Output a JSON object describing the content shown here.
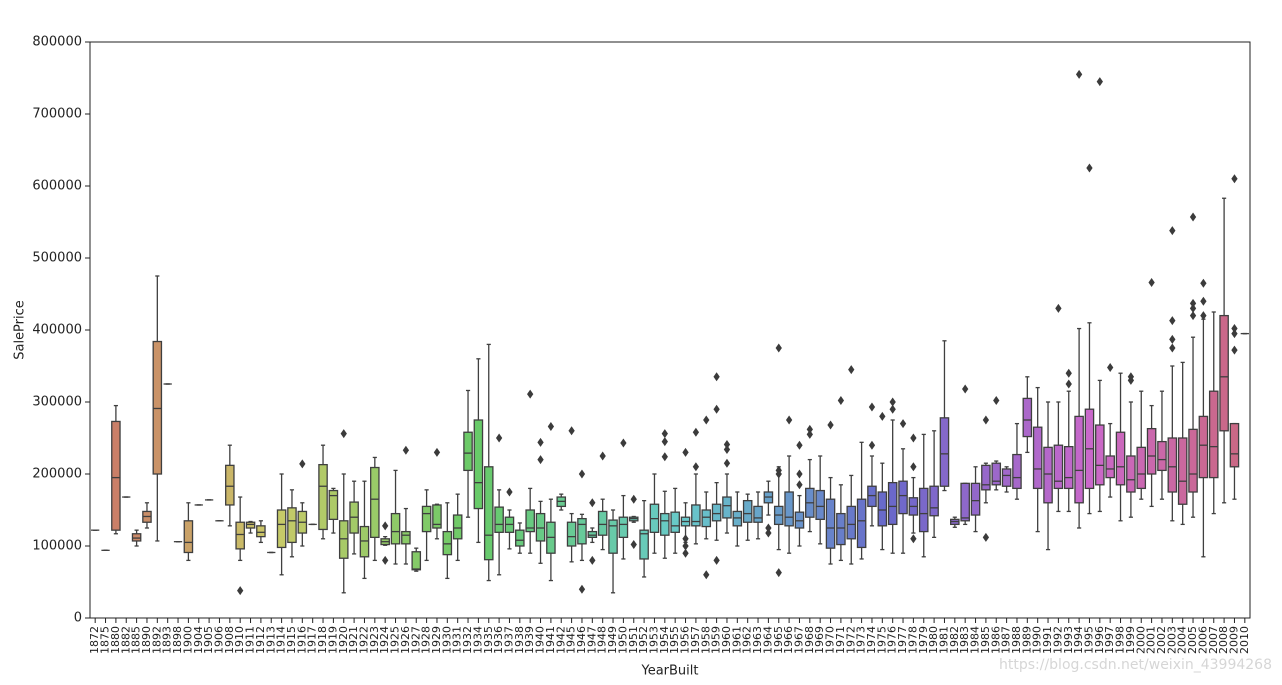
{
  "chart_data": {
    "type": "boxplot",
    "xlabel": "YearBuilt",
    "ylabel": "SalePrice",
    "palette": "husl",
    "box_line_color": "#3f3f3f",
    "flier_color": "#3b3b3b",
    "watermark": "https://blog.csdn.net/weixin_43994268",
    "ylim": [
      0,
      800000
    ],
    "yticks": [
      0,
      100000,
      200000,
      300000,
      400000,
      500000,
      600000,
      700000,
      800000
    ],
    "categories": [
      "1872",
      "1875",
      "1880",
      "1882",
      "1885",
      "1890",
      "1892",
      "1893",
      "1898",
      "1900",
      "1904",
      "1905",
      "1906",
      "1908",
      "1910",
      "1911",
      "1912",
      "1913",
      "1914",
      "1915",
      "1916",
      "1917",
      "1918",
      "1919",
      "1920",
      "1921",
      "1922",
      "1923",
      "1924",
      "1925",
      "1926",
      "1927",
      "1928",
      "1929",
      "1930",
      "1931",
      "1932",
      "1934",
      "1935",
      "1936",
      "1937",
      "1938",
      "1939",
      "1940",
      "1941",
      "1942",
      "1945",
      "1946",
      "1947",
      "1948",
      "1949",
      "1950",
      "1951",
      "1952",
      "1953",
      "1954",
      "1955",
      "1956",
      "1957",
      "1958",
      "1959",
      "1960",
      "1961",
      "1962",
      "1963",
      "1964",
      "1965",
      "1966",
      "1967",
      "1968",
      "1969",
      "1970",
      "1971",
      "1972",
      "1973",
      "1974",
      "1975",
      "1976",
      "1977",
      "1978",
      "1979",
      "1980",
      "1981",
      "1982",
      "1983",
      "1984",
      "1985",
      "1986",
      "1987",
      "1988",
      "1989",
      "1990",
      "1991",
      "1992",
      "1993",
      "1994",
      "1995",
      "1996",
      "1997",
      "1998",
      "1999",
      "2000",
      "2001",
      "2002",
      "2003",
      "2004",
      "2005",
      "2006",
      "2007",
      "2008",
      "2009",
      "2010"
    ],
    "whislo": [
      122000,
      94000,
      117000,
      168000,
      100000,
      125000,
      107000,
      325000,
      106000,
      80000,
      157000,
      164000,
      135000,
      128000,
      80000,
      118000,
      105000,
      91000,
      60000,
      85000,
      100000,
      130000,
      110000,
      118000,
      35000,
      89000,
      55000,
      80000,
      101000,
      75000,
      75000,
      65000,
      80000,
      110000,
      55000,
      80000,
      140000,
      105000,
      52000,
      60000,
      96000,
      90000,
      90000,
      76000,
      52000,
      150000,
      78000,
      80000,
      105000,
      95000,
      35000,
      82000,
      133000,
      57000,
      90000,
      83000,
      90000,
      105000,
      103000,
      110000,
      108000,
      118000,
      100000,
      108000,
      110000,
      143000,
      95000,
      90000,
      100000,
      120000,
      103000,
      75000,
      80000,
      75000,
      82000,
      128000,
      95000,
      90000,
      90000,
      118000,
      85000,
      112000,
      177000,
      126000,
      130000,
      120000,
      160000,
      178000,
      175000,
      165000,
      230000,
      120000,
      95000,
      148000,
      148000,
      125000,
      145000,
      148000,
      168000,
      135000,
      140000,
      165000,
      155000,
      165000,
      135000,
      130000,
      140000,
      85000,
      145000,
      160000,
      165000,
      395000
    ],
    "q1": [
      122000,
      94000,
      122000,
      168000,
      107000,
      133000,
      200000,
      325000,
      106000,
      91000,
      157000,
      164000,
      135000,
      157000,
      96000,
      125000,
      113000,
      91000,
      98000,
      105000,
      118000,
      130000,
      123000,
      137000,
      83000,
      118000,
      85000,
      112000,
      102000,
      103000,
      103000,
      67000,
      120000,
      125000,
      88000,
      110000,
      205000,
      152000,
      81000,
      119000,
      119000,
      100000,
      120000,
      107000,
      90000,
      155000,
      100000,
      103000,
      112000,
      115000,
      90000,
      112000,
      135000,
      82000,
      119000,
      115000,
      119000,
      128000,
      128000,
      127000,
      135000,
      139000,
      128000,
      133000,
      133000,
      160000,
      130000,
      128000,
      125000,
      140000,
      137000,
      97000,
      102000,
      110000,
      98000,
      155000,
      128000,
      130000,
      145000,
      143000,
      120000,
      142000,
      183000,
      130000,
      135000,
      143000,
      178000,
      185000,
      183000,
      180000,
      252000,
      180000,
      160000,
      180000,
      180000,
      160000,
      180000,
      185000,
      195000,
      185000,
      175000,
      180000,
      200000,
      205000,
      175000,
      158000,
      175000,
      195000,
      195000,
      260000,
      210000,
      395000
    ],
    "median": [
      122000,
      94000,
      195000,
      168000,
      111000,
      141000,
      291000,
      325000,
      106000,
      105000,
      157000,
      164000,
      135000,
      183000,
      116000,
      130000,
      119000,
      91000,
      130000,
      135000,
      133000,
      130000,
      183000,
      170000,
      110000,
      140000,
      107000,
      165000,
      106000,
      120000,
      115000,
      68000,
      145000,
      130000,
      103000,
      125000,
      229000,
      188000,
      115000,
      130000,
      130000,
      108000,
      125000,
      125000,
      112000,
      162000,
      113000,
      130000,
      115000,
      130000,
      128000,
      130000,
      138000,
      117000,
      138000,
      135000,
      128000,
      134000,
      134000,
      140000,
      145000,
      156000,
      139000,
      145000,
      139000,
      168000,
      143000,
      140000,
      135000,
      160000,
      155000,
      125000,
      125000,
      130000,
      135000,
      170000,
      150000,
      155000,
      170000,
      155000,
      145000,
      153000,
      228000,
      134000,
      139000,
      163000,
      185000,
      190000,
      198000,
      195000,
      275000,
      207000,
      200000,
      190000,
      195000,
      205000,
      235000,
      212000,
      207000,
      210000,
      192000,
      200000,
      225000,
      220000,
      210000,
      190000,
      200000,
      240000,
      238000,
      335000,
      228000,
      395000
    ],
    "q3": [
      122000,
      94000,
      273000,
      168000,
      117000,
      148000,
      384000,
      325000,
      106000,
      135000,
      157000,
      164000,
      135000,
      212000,
      133000,
      133000,
      128000,
      91000,
      150000,
      153000,
      148000,
      130000,
      213000,
      177000,
      135000,
      161000,
      127000,
      209000,
      110000,
      145000,
      120000,
      92000,
      155000,
      157000,
      120000,
      143000,
      258000,
      275000,
      210000,
      154000,
      140000,
      122000,
      150000,
      145000,
      133000,
      168000,
      133000,
      138000,
      120000,
      148000,
      136000,
      140000,
      140000,
      122000,
      158000,
      145000,
      147000,
      140000,
      157000,
      150000,
      158000,
      168000,
      148000,
      163000,
      155000,
      175000,
      155000,
      175000,
      147000,
      180000,
      177000,
      165000,
      145000,
      155000,
      165000,
      183000,
      175000,
      188000,
      190000,
      167000,
      180000,
      183000,
      278000,
      137000,
      187000,
      187000,
      212000,
      215000,
      207000,
      227000,
      305000,
      265000,
      237000,
      240000,
      238000,
      280000,
      290000,
      268000,
      225000,
      258000,
      225000,
      237000,
      263000,
      245000,
      250000,
      250000,
      262000,
      280000,
      315000,
      420000,
      270000,
      395000
    ],
    "whishi": [
      122000,
      94000,
      295000,
      168000,
      122000,
      160000,
      475000,
      325000,
      106000,
      160000,
      157000,
      164000,
      135000,
      240000,
      168000,
      134000,
      135000,
      91000,
      200000,
      178000,
      160000,
      130000,
      240000,
      180000,
      200000,
      190000,
      190000,
      223000,
      113000,
      205000,
      152000,
      97000,
      178000,
      158000,
      160000,
      172000,
      316000,
      360000,
      380000,
      178000,
      150000,
      132000,
      180000,
      162000,
      165000,
      172000,
      145000,
      144000,
      125000,
      165000,
      150000,
      170000,
      141000,
      163000,
      200000,
      176000,
      180000,
      160000,
      200000,
      175000,
      188000,
      200000,
      175000,
      172000,
      175000,
      190000,
      210000,
      225000,
      170000,
      220000,
      225000,
      195000,
      185000,
      198000,
      244000,
      225000,
      215000,
      275000,
      235000,
      195000,
      255000,
      260000,
      385000,
      140000,
      187000,
      210000,
      215000,
      218000,
      210000,
      270000,
      335000,
      320000,
      300000,
      300000,
      315000,
      402000,
      410000,
      330000,
      270000,
      340000,
      300000,
      315000,
      295000,
      315000,
      350000,
      355000,
      390000,
      415000,
      425000,
      583000,
      270000,
      395000
    ],
    "fliers": [
      [],
      [],
      [],
      [],
      [],
      [],
      [],
      [],
      [],
      [],
      [],
      [],
      [],
      [],
      [
        38000
      ],
      [],
      [],
      [],
      [],
      [],
      [
        214000
      ],
      [],
      [],
      [],
      [
        256000
      ],
      [],
      [],
      [],
      [
        80000,
        128000
      ],
      [],
      [
        233000
      ],
      [],
      [],
      [
        230000
      ],
      [],
      [],
      [],
      [],
      [],
      [
        250000
      ],
      [
        175000
      ],
      [],
      [
        311000
      ],
      [
        220000,
        244000
      ],
      [
        266000
      ],
      [],
      [
        260000
      ],
      [
        40000,
        200000
      ],
      [
        80000,
        160000
      ],
      [
        225000
      ],
      [],
      [
        243000
      ],
      [
        102000,
        165000
      ],
      [],
      [],
      [
        224000,
        245000,
        256000
      ],
      [],
      [
        90000,
        100000,
        110000,
        230000
      ],
      [
        210000,
        258000
      ],
      [
        60000,
        275000
      ],
      [
        80000,
        290000,
        335000
      ],
      [
        215000,
        234000,
        241000
      ],
      [],
      [],
      [],
      [
        118000,
        125000
      ],
      [
        63000,
        200000,
        205000,
        375000
      ],
      [
        275000
      ],
      [
        185000,
        200000,
        240000
      ],
      [
        255000,
        262000
      ],
      [],
      [
        268000
      ],
      [
        302000
      ],
      [
        345000
      ],
      [],
      [
        240000,
        293000
      ],
      [
        280000
      ],
      [
        290000,
        300000
      ],
      [
        270000
      ],
      [
        110000,
        210000,
        250000
      ],
      [],
      [],
      [],
      [],
      [
        318000
      ],
      [],
      [
        112000,
        275000
      ],
      [
        302000
      ],
      [],
      [],
      [],
      [],
      [],
      [
        430000
      ],
      [
        325000,
        340000
      ],
      [
        755000
      ],
      [
        625000
      ],
      [
        745000
      ],
      [
        348000
      ],
      [],
      [
        330000,
        335000
      ],
      [],
      [
        466000
      ],
      [],
      [
        375000,
        387000,
        413000,
        538000
      ],
      [],
      [
        420000,
        430000,
        437000,
        557000
      ],
      [
        420000,
        440000,
        465000
      ],
      [],
      [],
      [
        372000,
        395000,
        402000,
        610000
      ],
      []
    ]
  }
}
